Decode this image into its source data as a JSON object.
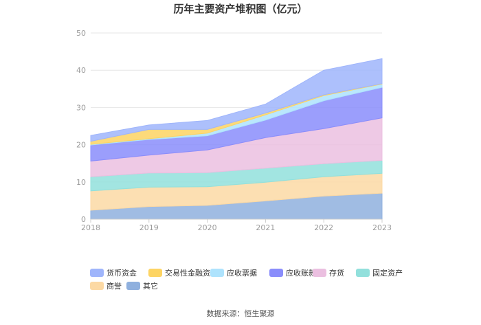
{
  "chart_data": {
    "type": "area",
    "stacked": true,
    "title": "历年主要资产堆积图（亿元）",
    "x": [
      "2018",
      "2019",
      "2020",
      "2021",
      "2022",
      "2023"
    ],
    "ylim": [
      0,
      50
    ],
    "yticks": [
      "0",
      "10",
      "20",
      "30",
      "40",
      "50"
    ],
    "grid": true,
    "legend_position": "bottom",
    "series": [
      {
        "name": "其它",
        "color": "#8fb0de",
        "values": [
          2.4,
          3.4,
          3.7,
          4.9,
          6.2,
          7.0
        ]
      },
      {
        "name": "商誉",
        "color": "#fcd9a4",
        "values": [
          5.2,
          5.2,
          5.0,
          5.0,
          5.2,
          5.3
        ]
      },
      {
        "name": "固定资产",
        "color": "#92e0dc",
        "values": [
          3.8,
          3.8,
          3.8,
          3.8,
          3.5,
          3.5
        ]
      },
      {
        "name": "存货",
        "color": "#ebbfe0",
        "values": [
          4.2,
          4.8,
          6.1,
          8.2,
          9.4,
          11.4
        ]
      },
      {
        "name": "应收账款",
        "color": "#8a8dfb",
        "values": [
          4.3,
          4.2,
          3.8,
          4.7,
          7.5,
          8.2
        ]
      },
      {
        "name": "应收票据",
        "color": "#aee3fd",
        "values": [
          0.2,
          0.2,
          0.7,
          1.4,
          1.4,
          0.9
        ]
      },
      {
        "name": "交易性金融资产",
        "color": "#fdd463",
        "values": [
          0.8,
          2.5,
          1.0,
          0.5,
          0.2,
          0.1
        ]
      },
      {
        "name": "货币资金",
        "color": "#9fb5fb",
        "values": [
          1.6,
          1.2,
          2.4,
          2.4,
          6.6,
          6.7
        ]
      }
    ],
    "legend_order": [
      "货币资金",
      "交易性金融资产",
      "应收票据",
      "应收账款",
      "存货",
      "固定资产",
      "商誉",
      "其它"
    ]
  },
  "source": "数据来源：恒生聚源"
}
